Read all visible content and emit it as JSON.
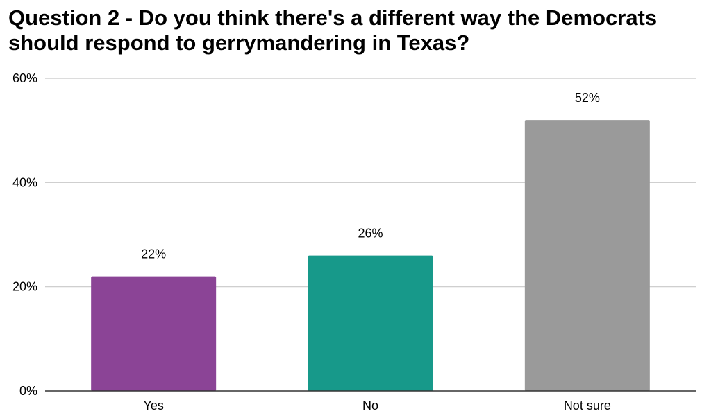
{
  "chart_data": {
    "type": "bar",
    "title": "Question 2 - Do you think there's a different way the Democrats should respond to gerrymandering in Texas?",
    "categories": [
      "Yes",
      "No",
      "Not sure"
    ],
    "values": [
      22,
      26,
      52
    ],
    "data_labels": [
      "22%",
      "26%",
      "52%"
    ],
    "colors": [
      "#8b4496",
      "#17998a",
      "#9a9a9a"
    ],
    "ylim": [
      0,
      60
    ],
    "y_ticks": [
      {
        "value": 0,
        "label": "0%"
      },
      {
        "value": 20,
        "label": "20%"
      },
      {
        "value": 40,
        "label": "40%"
      },
      {
        "value": 60,
        "label": "60%"
      }
    ],
    "xlabel": "",
    "ylabel": "",
    "grid": true,
    "legend": "none"
  }
}
